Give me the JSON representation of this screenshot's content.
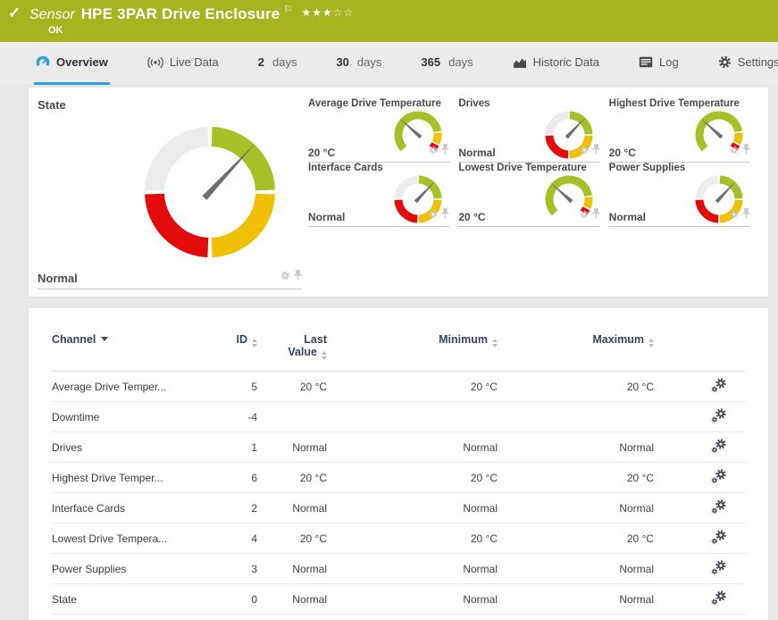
{
  "colors": {
    "topbar_green": "#a5b41f",
    "accent_blue": "#2aa3d9",
    "gauge_green": "#a6c127",
    "gauge_yellow": "#efc003",
    "gauge_red": "#e40b0b",
    "gauge_gray": "#ececec",
    "needle_gray": "#6e6e6e",
    "header_navy": "#32455c"
  },
  "icons": {
    "check": "✓",
    "flag": "⚐",
    "star_filled": "★",
    "star_empty": "☆"
  },
  "header": {
    "kind_label": "Sensor",
    "title": "HPE 3PAR Drive Enclosure",
    "status": "OK",
    "rating": {
      "filled": 3,
      "total": 5
    }
  },
  "tabs": [
    {
      "id": "overview",
      "icon": "gauge-icon",
      "label": "Overview",
      "active": true
    },
    {
      "id": "live-data",
      "icon": "live-icon",
      "label": "Live Data"
    },
    {
      "id": "2-days",
      "num": "2",
      "label": "days"
    },
    {
      "id": "30-days",
      "num": "30",
      "label": "days"
    },
    {
      "id": "365-days",
      "num": "365",
      "label": "days"
    },
    {
      "id": "historic-data",
      "icon": "chart-icon",
      "label": "Historic Data"
    },
    {
      "id": "log",
      "icon": "log-icon",
      "label": "Log"
    },
    {
      "id": "settings",
      "icon": "gear-icon",
      "label": "Settings"
    }
  ],
  "overview": {
    "state_gauge": {
      "label": "State",
      "value": "Normal",
      "type": "status",
      "needle_deg": 43
    },
    "gauges": [
      {
        "label": "Average Drive Temperature",
        "value": "20 °C",
        "type": "temp",
        "needle_deg": -48
      },
      {
        "label": "Drives",
        "value": "Normal",
        "type": "status",
        "needle_deg": 43
      },
      {
        "label": "Highest Drive Temperature",
        "value": "20 °C",
        "type": "temp",
        "needle_deg": -48
      },
      {
        "label": "Interface Cards",
        "value": "Normal",
        "type": "status",
        "needle_deg": 43
      },
      {
        "label": "Lowest Drive Temperature",
        "value": "20 °C",
        "type": "temp",
        "needle_deg": -48
      },
      {
        "label": "Power Supplies",
        "value": "Normal",
        "type": "status",
        "needle_deg": 43
      }
    ]
  },
  "table": {
    "columns": [
      {
        "key": "channel",
        "label": "Channel",
        "sorted": true
      },
      {
        "key": "id",
        "label": "ID"
      },
      {
        "key": "last",
        "label": "Last Value",
        "two_line": true
      },
      {
        "key": "min",
        "label": "Minimum"
      },
      {
        "key": "max",
        "label": "Maximum"
      }
    ],
    "rows": [
      {
        "channel": "Average Drive Temper...",
        "id": "5",
        "last": "20 °C",
        "min": "20 °C",
        "max": "20 °C"
      },
      {
        "channel": "Downtime",
        "id": "-4",
        "last": "",
        "min": "",
        "max": ""
      },
      {
        "channel": "Drives",
        "id": "1",
        "last": "Normal",
        "min": "Normal",
        "max": "Normal"
      },
      {
        "channel": "Highest Drive Temper...",
        "id": "6",
        "last": "20 °C",
        "min": "20 °C",
        "max": "20 °C"
      },
      {
        "channel": "Interface Cards",
        "id": "2",
        "last": "Normal",
        "min": "Normal",
        "max": "Normal"
      },
      {
        "channel": "Lowest Drive Tempera...",
        "id": "4",
        "last": "20 °C",
        "min": "20 °C",
        "max": "20 °C"
      },
      {
        "channel": "Power Supplies",
        "id": "3",
        "last": "Normal",
        "min": "Normal",
        "max": "Normal"
      },
      {
        "channel": "State",
        "id": "0",
        "last": "Normal",
        "min": "Normal",
        "max": "Normal"
      }
    ]
  }
}
